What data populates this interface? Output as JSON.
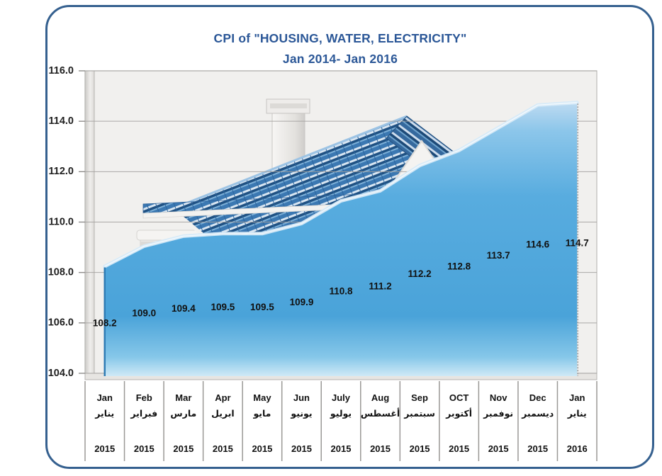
{
  "title": {
    "line1": "CPI of \"HOUSING, WATER, ELECTRICITY\"",
    "line2": "Jan 2014- Jan 2016"
  },
  "chart_data": {
    "type": "area",
    "title": "CPI of \"HOUSING, WATER, ELECTRICITY\" Jan 2014- Jan 2016",
    "categories": [
      {
        "month": "Jan",
        "arabic": "يناير",
        "year": "2015"
      },
      {
        "month": "Feb",
        "arabic": "فبراير",
        "year": "2015"
      },
      {
        "month": "Mar",
        "arabic": "مارس",
        "year": "2015"
      },
      {
        "month": "Apr",
        "arabic": "ابريل",
        "year": "2015"
      },
      {
        "month": "May",
        "arabic": "مايو",
        "year": "2015"
      },
      {
        "month": "Jun",
        "arabic": "يونيو",
        "year": "2015"
      },
      {
        "month": "July",
        "arabic": "يوليو",
        "year": "2015"
      },
      {
        "month": "Aug",
        "arabic": "أغسطس",
        "year": "2015"
      },
      {
        "month": "Sep",
        "arabic": "سبتمبر",
        "year": "2015"
      },
      {
        "month": "OCT",
        "arabic": "أكتوبر",
        "year": "2015"
      },
      {
        "month": "Nov",
        "arabic": "نوفمبر",
        "year": "2015"
      },
      {
        "month": "Dec",
        "arabic": "ديسمبر",
        "year": "2015"
      },
      {
        "month": "Jan",
        "arabic": "يناير",
        "year": "2016"
      }
    ],
    "values": [
      108.2,
      109.0,
      109.4,
      109.5,
      109.5,
      109.9,
      110.8,
      111.2,
      112.2,
      112.8,
      113.7,
      114.6,
      114.7
    ],
    "ylim": [
      104.0,
      116.0
    ],
    "ytick_step": 2.0,
    "yticks": [
      104.0,
      106.0,
      108.0,
      110.0,
      112.0,
      114.0,
      116.0
    ],
    "grid": true,
    "legend": "none",
    "xlabel": "",
    "ylabel": ""
  },
  "colors": {
    "frame_border": "#35608f",
    "title_text": "#2b5797",
    "plot_background": "#f1f0ee",
    "gridline": "#a3a19f",
    "series_main": "#4fa8dc",
    "series_bevel": "#d6eaf8",
    "roof_blue": "#3b78b2",
    "label_text": "#111111"
  }
}
